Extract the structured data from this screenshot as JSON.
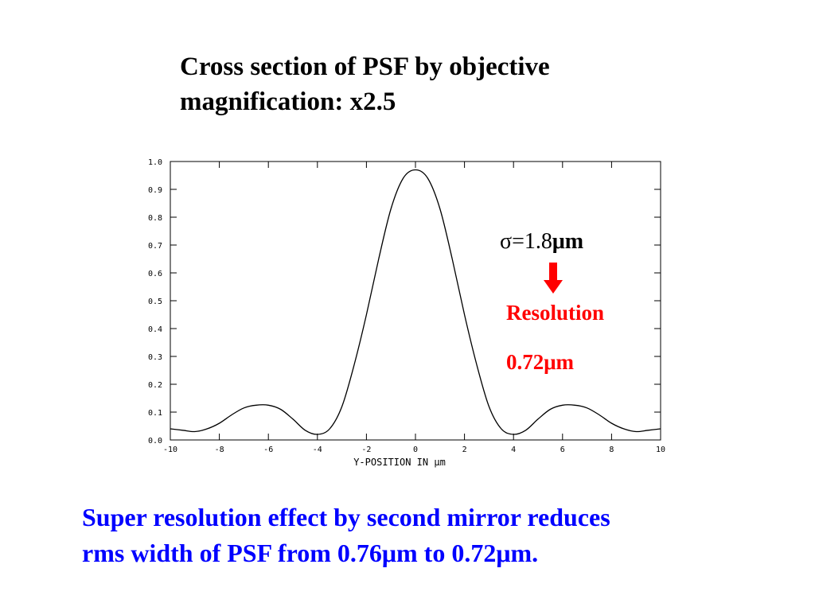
{
  "slide": {
    "title_line1": "Cross section of PSF by objective",
    "title_line2": "magnification: x2.5",
    "sigma_value": "σ=1.8",
    "sigma_unit": "μm",
    "resolution_label": "Resolution",
    "resolution_value": "0.72μm",
    "caption_line1": "Super resolution effect by second mirror reduces",
    "caption_line2": "rms width of PSF from 0.76μm to 0.72μm.",
    "arrow_icon": "down-arrow-icon",
    "colors": {
      "title": "#000000",
      "annotation": "#ff0000",
      "caption": "#0000ff",
      "curve": "#000000"
    }
  },
  "chart_data": {
    "type": "line",
    "title": "",
    "xlabel": "Y-POSITION IN μm",
    "ylabel": "",
    "xlim": [
      -10,
      10
    ],
    "ylim": [
      0,
      1.0
    ],
    "x_ticks": [
      -10,
      -8,
      -6,
      -4,
      -2,
      0,
      2,
      4,
      6,
      8,
      10
    ],
    "x_tick_labels": [
      "-10",
      "-8",
      "-6",
      "-4",
      "-2",
      "0",
      "2",
      "4",
      "6",
      "8",
      "10"
    ],
    "y_ticks": [
      0,
      0.1,
      0.2,
      0.3,
      0.4,
      0.5,
      0.6,
      0.7,
      0.8,
      0.9,
      1.0
    ],
    "y_tick_labels": [
      "0.0",
      "0.1",
      "0.2",
      "0.3",
      "0.4",
      "0.5",
      "0.6",
      "0.7",
      "0.8",
      "0.9",
      "1.0"
    ],
    "grid": false,
    "series": [
      {
        "x": [
          -10,
          -9.5,
          -9,
          -8.5,
          -8,
          -7.5,
          -7,
          -6.5,
          -6,
          -5.5,
          -5,
          -4.5,
          -4,
          -3.5,
          -3,
          -2.5,
          -2,
          -1.5,
          -1,
          -0.5,
          0,
          0.5,
          1,
          1.5,
          2,
          2.5,
          3,
          3.5,
          4,
          4.5,
          5,
          5.5,
          6,
          6.5,
          7,
          7.5,
          8,
          8.5,
          9,
          9.5,
          10
        ],
        "y": [
          0.04,
          0.035,
          0.03,
          0.04,
          0.06,
          0.09,
          0.115,
          0.125,
          0.125,
          0.11,
          0.075,
          0.035,
          0.02,
          0.04,
          0.12,
          0.27,
          0.45,
          0.65,
          0.83,
          0.94,
          0.97,
          0.94,
          0.83,
          0.65,
          0.45,
          0.27,
          0.12,
          0.04,
          0.02,
          0.035,
          0.075,
          0.11,
          0.125,
          0.125,
          0.115,
          0.09,
          0.06,
          0.04,
          0.03,
          0.035,
          0.04
        ]
      }
    ]
  }
}
